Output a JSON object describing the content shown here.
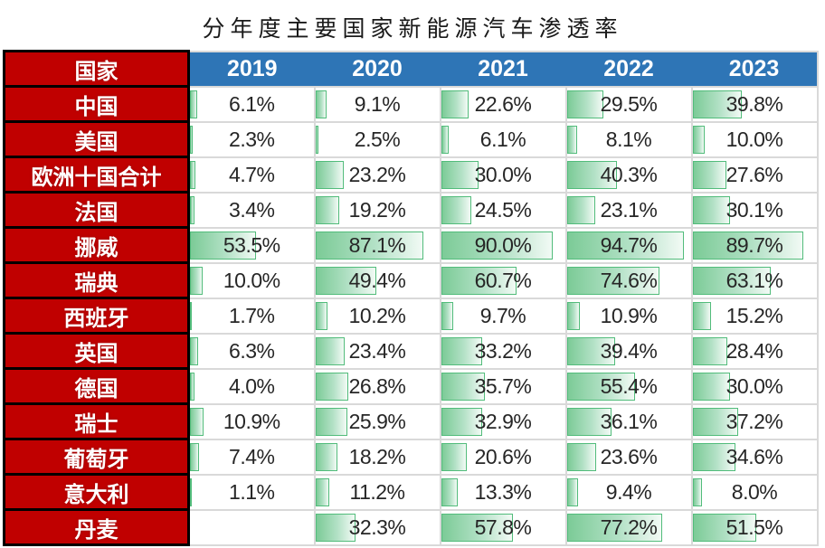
{
  "title": "分年度主要国家新能源汽车渗透率",
  "table": {
    "country_header": "国家",
    "years": [
      "2019",
      "2020",
      "2021",
      "2022",
      "2023"
    ],
    "rows": [
      {
        "country": "中国",
        "cells": [
          {
            "label": "6.1%",
            "value": 6.1
          },
          {
            "label": "9.1%",
            "value": 9.1
          },
          {
            "label": "22.6%",
            "value": 22.6
          },
          {
            "label": "29.5%",
            "value": 29.5
          },
          {
            "label": "39.8%",
            "value": 39.8
          }
        ]
      },
      {
        "country": "美国",
        "cells": [
          {
            "label": "2.3%",
            "value": 2.3
          },
          {
            "label": "2.5%",
            "value": 2.5
          },
          {
            "label": "6.1%",
            "value": 6.1
          },
          {
            "label": "8.1%",
            "value": 8.1
          },
          {
            "label": "10.0%",
            "value": 10.0
          }
        ]
      },
      {
        "country": "欧洲十国合计",
        "cells": [
          {
            "label": "4.7%",
            "value": 4.7
          },
          {
            "label": "23.2%",
            "value": 23.2
          },
          {
            "label": "30.0%",
            "value": 30.0
          },
          {
            "label": "40.3%",
            "value": 40.3
          },
          {
            "label": "27.6%",
            "value": 27.6
          }
        ]
      },
      {
        "country": "法国",
        "cells": [
          {
            "label": "3.4%",
            "value": 3.4
          },
          {
            "label": "19.2%",
            "value": 19.2
          },
          {
            "label": "24.5%",
            "value": 24.5
          },
          {
            "label": "23.1%",
            "value": 23.1
          },
          {
            "label": "30.1%",
            "value": 30.1
          }
        ]
      },
      {
        "country": "挪威",
        "cells": [
          {
            "label": "53.5%",
            "value": 53.5
          },
          {
            "label": "87.1%",
            "value": 87.1
          },
          {
            "label": "90.0%",
            "value": 90.0
          },
          {
            "label": "94.7%",
            "value": 94.7
          },
          {
            "label": "89.7%",
            "value": 89.7
          }
        ]
      },
      {
        "country": "瑞典",
        "cells": [
          {
            "label": "10.0%",
            "value": 10.0
          },
          {
            "label": "49.4%",
            "value": 49.4
          },
          {
            "label": "60.7%",
            "value": 60.7
          },
          {
            "label": "74.6%",
            "value": 74.6
          },
          {
            "label": "63.1%",
            "value": 63.1
          }
        ]
      },
      {
        "country": "西班牙",
        "cells": [
          {
            "label": "1.7%",
            "value": 1.7
          },
          {
            "label": "10.2%",
            "value": 10.2
          },
          {
            "label": "9.7%",
            "value": 9.7
          },
          {
            "label": "10.9%",
            "value": 10.9
          },
          {
            "label": "15.2%",
            "value": 15.2
          }
        ]
      },
      {
        "country": "英国",
        "cells": [
          {
            "label": "6.3%",
            "value": 6.3
          },
          {
            "label": "23.4%",
            "value": 23.4
          },
          {
            "label": "33.2%",
            "value": 33.2
          },
          {
            "label": "39.4%",
            "value": 39.4
          },
          {
            "label": "28.4%",
            "value": 28.4
          }
        ]
      },
      {
        "country": "德国",
        "cells": [
          {
            "label": "4.0%",
            "value": 4.0
          },
          {
            "label": "26.8%",
            "value": 26.8
          },
          {
            "label": "35.7%",
            "value": 35.7
          },
          {
            "label": "55.4%",
            "value": 55.4
          },
          {
            "label": "30.0%",
            "value": 30.0
          }
        ]
      },
      {
        "country": "瑞士",
        "cells": [
          {
            "label": "10.9%",
            "value": 10.9
          },
          {
            "label": "25.9%",
            "value": 25.9
          },
          {
            "label": "32.9%",
            "value": 32.9
          },
          {
            "label": "36.1%",
            "value": 36.1
          },
          {
            "label": "37.2%",
            "value": 37.2
          }
        ]
      },
      {
        "country": "葡萄牙",
        "cells": [
          {
            "label": "7.4%",
            "value": 7.4
          },
          {
            "label": "18.2%",
            "value": 18.2
          },
          {
            "label": "20.6%",
            "value": 20.6
          },
          {
            "label": "23.6%",
            "value": 23.6
          },
          {
            "label": "34.6%",
            "value": 34.6
          }
        ]
      },
      {
        "country": "意大利",
        "cells": [
          {
            "label": "1.1%",
            "value": 1.1
          },
          {
            "label": "11.2%",
            "value": 11.2
          },
          {
            "label": "13.3%",
            "value": 13.3
          },
          {
            "label": "9.4%",
            "value": 9.4
          },
          {
            "label": "8.0%",
            "value": 8.0
          }
        ]
      },
      {
        "country": "丹麦",
        "cells": [
          null,
          {
            "label": "32.3%",
            "value": 32.3
          },
          {
            "label": "57.8%",
            "value": 57.8
          },
          {
            "label": "77.2%",
            "value": 77.2
          },
          {
            "label": "51.5%",
            "value": 51.5
          }
        ]
      }
    ]
  },
  "colors": {
    "country_cell_bg": "#C00000",
    "country_cell_border": "#000000",
    "year_header_bg": "#2E75B6",
    "header_text": "#FFFFFF",
    "bar_border": "#52BC7B",
    "bar_fill_start": "#7CCB97",
    "bar_fill_end": "#F2FAF5",
    "grid_line": "#D9D9D9",
    "value_text": "#262626",
    "title_text": "#1A1A1A"
  },
  "chart_data": {
    "type": "bar",
    "layout": "table-with-data-bars",
    "title": "分年度主要国家新能源汽车渗透率",
    "unit": "%",
    "value_range": [
      0,
      100
    ],
    "categories": [
      "中国",
      "美国",
      "欧洲十国合计",
      "法国",
      "挪威",
      "瑞典",
      "西班牙",
      "英国",
      "德国",
      "瑞士",
      "葡萄牙",
      "意大利",
      "丹麦"
    ],
    "series": [
      {
        "name": "2019",
        "values": [
          6.1,
          2.3,
          4.7,
          3.4,
          53.5,
          10.0,
          1.7,
          6.3,
          4.0,
          10.9,
          7.4,
          1.1,
          null
        ]
      },
      {
        "name": "2020",
        "values": [
          9.1,
          2.5,
          23.2,
          19.2,
          87.1,
          49.4,
          10.2,
          23.4,
          26.8,
          25.9,
          18.2,
          11.2,
          32.3
        ]
      },
      {
        "name": "2021",
        "values": [
          22.6,
          6.1,
          30.0,
          24.5,
          90.0,
          60.7,
          9.7,
          33.2,
          35.7,
          32.9,
          20.6,
          13.3,
          57.8
        ]
      },
      {
        "name": "2022",
        "values": [
          29.5,
          8.1,
          40.3,
          23.1,
          94.7,
          74.6,
          10.9,
          39.4,
          55.4,
          36.1,
          23.6,
          9.4,
          77.2
        ]
      },
      {
        "name": "2023",
        "values": [
          39.8,
          10.0,
          27.6,
          30.1,
          89.7,
          63.1,
          15.2,
          28.4,
          30.0,
          37.2,
          34.6,
          8.0,
          51.5
        ]
      }
    ]
  }
}
